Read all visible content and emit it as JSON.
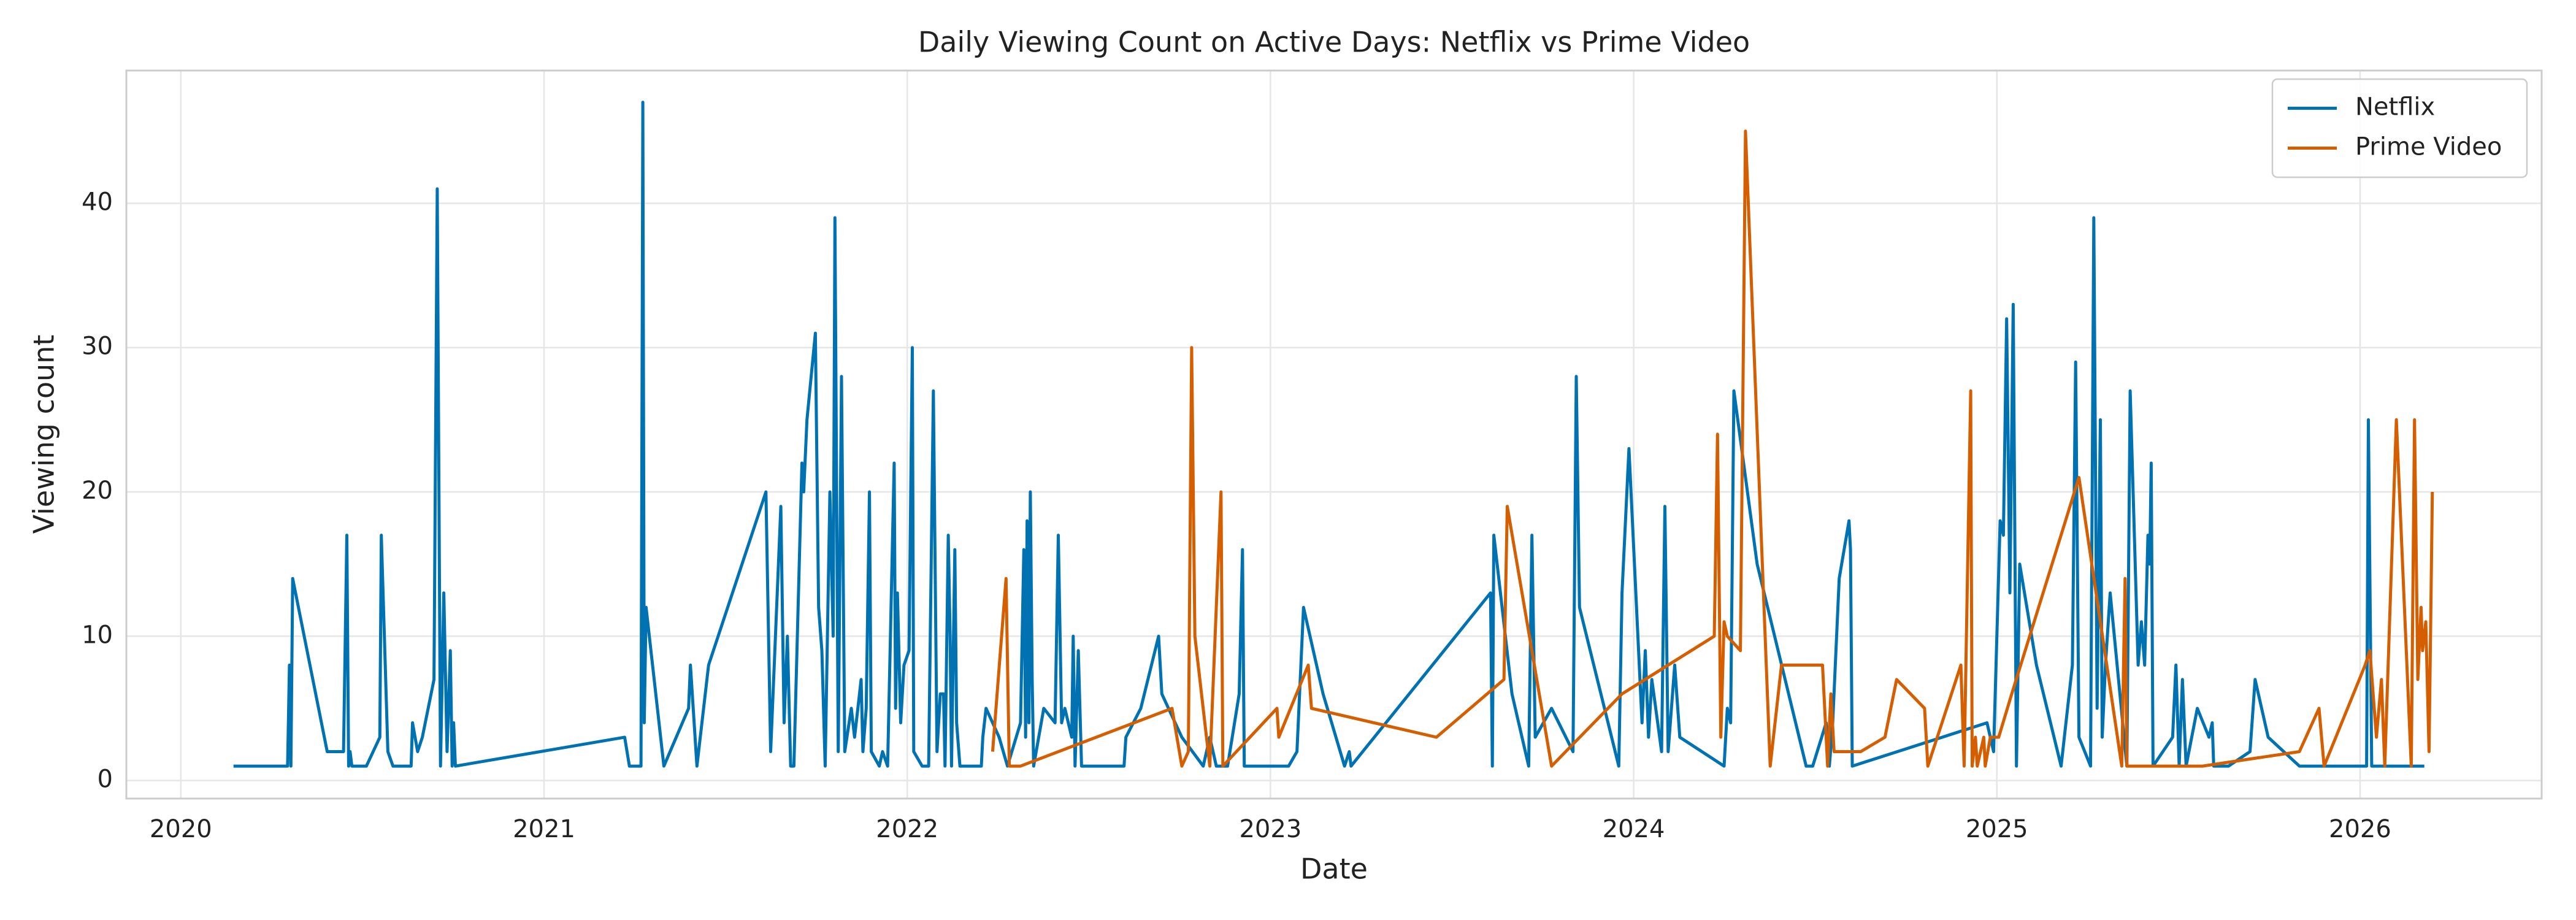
{
  "chart_data": {
    "type": "line",
    "title": "Daily Viewing Count on Active Days: Netflix vs Prime Video",
    "x_label": "Date",
    "y_label": "Viewing count",
    "xlim": [
      2019.85,
      2026.5
    ],
    "xticks": [
      2020,
      2021,
      2022,
      2023,
      2024,
      2025,
      2026
    ],
    "ylim": [
      -1.25,
      49.2
    ],
    "yticks": [
      0,
      10,
      20,
      30,
      40
    ],
    "grid": true,
    "legend": "upper right",
    "series": [
      {
        "name": "Netflix",
        "color": "#0072b2",
        "x": [
          2020.145,
          2020.294,
          2020.299,
          2020.303,
          2020.308,
          2020.403,
          2020.448,
          2020.457,
          2020.462,
          2020.466,
          2020.471,
          2020.511,
          2020.548,
          2020.552,
          2020.57,
          2020.584,
          2020.634,
          2020.638,
          2020.652,
          2020.665,
          2020.697,
          2020.706,
          2020.715,
          2020.724,
          2020.733,
          2020.742,
          2020.747,
          2020.751,
          2020.756,
          2021.222,
          2021.235,
          2021.267,
          2021.272,
          2021.276,
          2021.281,
          2021.33,
          2021.398,
          2021.403,
          2021.421,
          2021.453,
          2021.611,
          2021.624,
          2021.652,
          2021.661,
          2021.67,
          2021.679,
          2021.688,
          2021.71,
          2021.715,
          2021.724,
          2021.747,
          2021.756,
          2021.765,
          2021.774,
          2021.787,
          2021.796,
          2021.801,
          2021.81,
          2021.819,
          2021.828,
          2021.846,
          2021.855,
          2021.864,
          2021.873,
          2021.878,
          2021.887,
          2021.896,
          2021.901,
          2021.923,
          2021.932,
          2021.946,
          2021.964,
          2021.968,
          2021.973,
          2021.982,
          2021.991,
          2022.005,
          2022.014,
          2022.018,
          2022.041,
          2022.059,
          2022.072,
          2022.082,
          2022.091,
          2022.1,
          2022.104,
          2022.113,
          2022.118,
          2022.122,
          2022.131,
          2022.136,
          2022.145,
          2022.204,
          2022.208,
          2022.217,
          2022.253,
          2022.276,
          2022.312,
          2022.321,
          2022.326,
          2022.33,
          2022.335,
          2022.339,
          2022.344,
          2022.348,
          2022.376,
          2022.407,
          2022.416,
          2022.425,
          2022.434,
          2022.453,
          2022.457,
          2022.462,
          2022.471,
          2022.48,
          2022.507,
          2022.597,
          2022.602,
          2022.643,
          2022.692,
          2022.701,
          2022.756,
          2022.815,
          2022.833,
          2022.851,
          2022.882,
          2022.914,
          2022.923,
          2022.928,
          2023.05,
          2023.073,
          2023.091,
          2023.145,
          2023.204,
          2023.217,
          2023.222,
          2023.606,
          2023.611,
          2023.615,
          2023.665,
          2023.711,
          2023.72,
          2023.729,
          2023.774,
          2023.833,
          2023.842,
          2023.851,
          2023.959,
          2023.968,
          2023.987,
          2024.023,
          2024.032,
          2024.041,
          2024.05,
          2024.077,
          2024.086,
          2024.095,
          2024.113,
          2024.127,
          2024.249,
          2024.258,
          2024.267,
          2024.276,
          2024.34,
          2024.475,
          2024.493,
          2024.53,
          2024.539,
          2024.548,
          2024.566,
          2024.593,
          2024.597,
          2024.602,
          2024.973,
          2024.991,
          2025.009,
          2025.018,
          2025.027,
          2025.036,
          2025.045,
          2025.054,
          2025.063,
          2025.109,
          2025.177,
          2025.208,
          2025.217,
          2025.226,
          2025.258,
          2025.267,
          2025.276,
          2025.285,
          2025.29,
          2025.299,
          2025.312,
          2025.358,
          2025.367,
          2025.389,
          2025.398,
          2025.407,
          2025.416,
          2025.421,
          2025.425,
          2025.43,
          2025.484,
          2025.493,
          2025.502,
          2025.511,
          2025.521,
          2025.552,
          2025.584,
          2025.593,
          2025.597,
          2025.638,
          2025.697,
          2025.711,
          2025.747,
          2025.833,
          2026.018,
          2026.023,
          2026.032,
          2026.064,
          2026.177
        ],
        "values": [
          1,
          1,
          8,
          1,
          14,
          2,
          2,
          17,
          1,
          2,
          1,
          1,
          3,
          17,
          2,
          1,
          1,
          4,
          2,
          3,
          7,
          41,
          1,
          13,
          2,
          9,
          1,
          4,
          1,
          3,
          1,
          1,
          47,
          4,
          12,
          1,
          5,
          8,
          1,
          8,
          20,
          2,
          19,
          4,
          10,
          1,
          1,
          22,
          20,
          25,
          31,
          12,
          9,
          1,
          20,
          10,
          39,
          2,
          28,
          2,
          5,
          3,
          5,
          7,
          2,
          5,
          20,
          2,
          1,
          2,
          1,
          22,
          5,
          13,
          4,
          8,
          9,
          30,
          2,
          1,
          1,
          27,
          2,
          6,
          6,
          1,
          17,
          10,
          1,
          16,
          4,
          1,
          1,
          3,
          5,
          3,
          1,
          4,
          16,
          3,
          18,
          4,
          20,
          7,
          1,
          5,
          4,
          17,
          4,
          5,
          3,
          10,
          1,
          9,
          1,
          1,
          1,
          3,
          5,
          10,
          6,
          3,
          1,
          3,
          1,
          1,
          6,
          16,
          1,
          1,
          2,
          12,
          6,
          1,
          2,
          1,
          13,
          1,
          17,
          6,
          1,
          17,
          3,
          5,
          2,
          28,
          12,
          1,
          13,
          23,
          4,
          9,
          3,
          7,
          2,
          19,
          2,
          8,
          3,
          1,
          5,
          4,
          27,
          15,
          1,
          1,
          4,
          1,
          4,
          14,
          18,
          16,
          1,
          4,
          2,
          18,
          17,
          32,
          13,
          33,
          1,
          15,
          8,
          1,
          8,
          29,
          3,
          1,
          39,
          5,
          25,
          3,
          8,
          13,
          1,
          27,
          8,
          11,
          8,
          17,
          15,
          22,
          1,
          3,
          8,
          1,
          7,
          1,
          5,
          3,
          4,
          1,
          1,
          2,
          7,
          3,
          1,
          1,
          25,
          1,
          1,
          1
        ]
      },
      {
        "name": "Prime Video",
        "color": "#d55e00",
        "x": [
          2022.235,
          2022.272,
          2022.281,
          2022.312,
          2022.729,
          2022.756,
          2022.774,
          2022.783,
          2022.792,
          2022.833,
          2022.864,
          2022.869,
          2023.018,
          2023.023,
          2023.104,
          2023.113,
          2023.457,
          2023.643,
          2023.652,
          2023.774,
          2023.968,
          2024.222,
          2024.231,
          2024.24,
          2024.249,
          2024.258,
          2024.294,
          2024.308,
          2024.376,
          2024.407,
          2024.52,
          2024.534,
          2024.543,
          2024.552,
          2024.588,
          2024.625,
          2024.692,
          2024.724,
          2024.801,
          2024.81,
          2024.901,
          2024.91,
          2024.928,
          2024.932,
          2024.941,
          2024.946,
          2024.964,
          2024.968,
          2024.982,
          2025.005,
          2025.041,
          2025.226,
          2025.344,
          2025.353,
          2025.358,
          2025.566,
          2025.833,
          2025.887,
          2025.901,
          2026.014,
          2026.027,
          2026.045,
          2026.059,
          2026.068,
          2026.1,
          2026.141,
          2026.15,
          2026.159,
          2026.168,
          2026.172,
          2026.181,
          2026.19,
          2026.199
        ],
        "values": [
          2,
          14,
          1,
          1,
          5,
          1,
          2,
          30,
          10,
          1,
          20,
          1,
          5,
          3,
          8,
          5,
          3,
          7,
          19,
          1,
          6,
          10,
          24,
          3,
          11,
          10,
          9,
          45,
          1,
          8,
          8,
          1,
          6,
          2,
          2,
          2,
          3,
          7,
          5,
          1,
          8,
          1,
          27,
          1,
          3,
          1,
          3,
          1,
          3,
          3,
          6,
          21,
          1,
          14,
          1,
          1,
          2,
          5,
          1,
          8,
          9,
          3,
          7,
          1,
          25,
          1,
          25,
          7,
          12,
          9,
          11,
          2,
          20
        ]
      }
    ]
  }
}
